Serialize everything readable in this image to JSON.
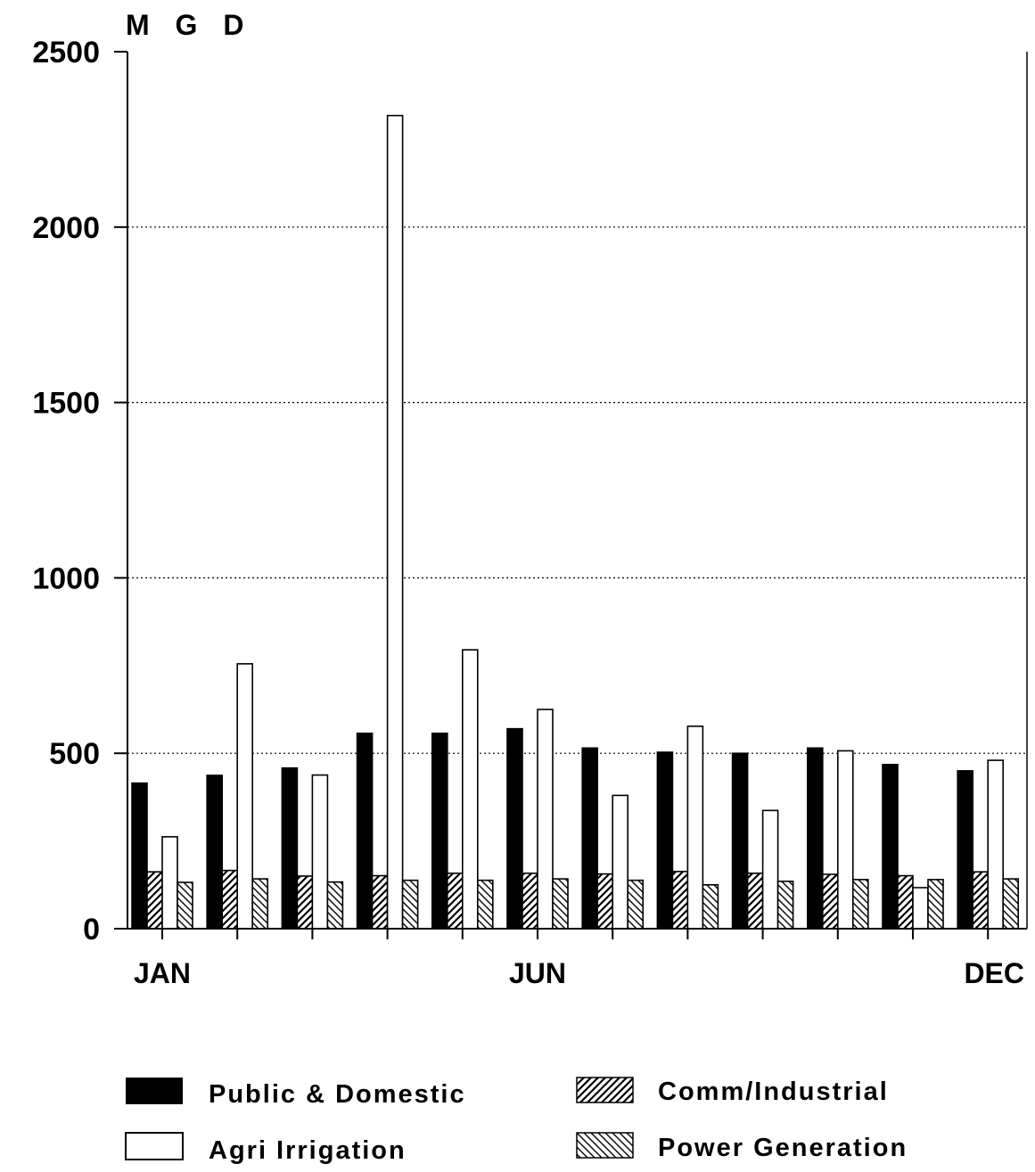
{
  "chart_data": {
    "type": "bar",
    "ylabel": "M G D",
    "ylim": [
      0,
      2500
    ],
    "yticks": [
      0,
      500,
      1000,
      1500,
      2000,
      2500
    ],
    "grid": true,
    "x_tick_labels": [
      {
        "month": 1,
        "label": "JAN"
      },
      {
        "month": 6,
        "label": "JUN"
      },
      {
        "month": 12,
        "label": "DEC"
      }
    ],
    "categories": [
      "1",
      "2",
      "3",
      "4",
      "5",
      "6",
      "7",
      "8",
      "9",
      "10",
      "11",
      "12"
    ],
    "series": [
      {
        "name": "Public & Domestic",
        "pattern": "solid",
        "values": [
          415,
          437,
          458,
          557,
          557,
          570,
          515,
          503,
          500,
          515,
          468,
          450
        ]
      },
      {
        "name": "Comm/Industrial",
        "pattern": "diagonal-up",
        "values": [
          162,
          166,
          150,
          151,
          158,
          158,
          156,
          163,
          158,
          155,
          151,
          162
        ]
      },
      {
        "name": "Agri Irrigation",
        "pattern": "white",
        "values": [
          262,
          755,
          438,
          2318,
          795,
          625,
          380,
          577,
          337,
          507,
          117,
          480
        ]
      },
      {
        "name": "Power Generation",
        "pattern": "diagonal-down",
        "values": [
          132,
          142,
          133,
          138,
          138,
          142,
          138,
          125,
          135,
          140,
          140,
          142
        ]
      }
    ],
    "legend_position": "bottom"
  }
}
